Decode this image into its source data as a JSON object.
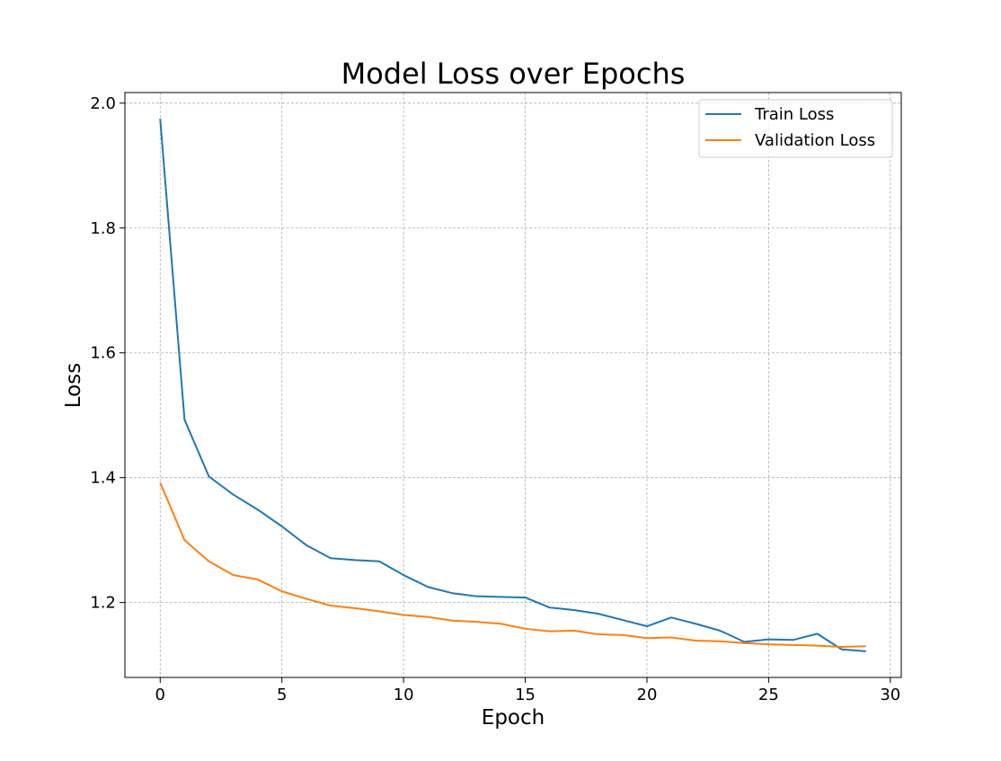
{
  "chart_data": {
    "type": "line",
    "title": "Model Loss over Epochs",
    "xlabel": "Epoch",
    "ylabel": "Loss",
    "xlim": [
      -1.45,
      30.45
    ],
    "ylim": [
      1.08,
      2.017
    ],
    "xticks": [
      0,
      5,
      10,
      15,
      20,
      25,
      30
    ],
    "yticks": [
      1.2,
      1.4,
      1.6,
      1.8,
      2.0
    ],
    "xtick_labels": [
      "0",
      "5",
      "10",
      "15",
      "20",
      "25",
      "30"
    ],
    "ytick_labels": [
      "1.2",
      "1.4",
      "1.6",
      "1.8",
      "2.0"
    ],
    "grid": true,
    "legend_position": "top-right",
    "x": [
      0,
      1,
      2,
      3,
      4,
      5,
      6,
      7,
      8,
      9,
      10,
      11,
      12,
      13,
      14,
      15,
      16,
      17,
      18,
      19,
      20,
      21,
      22,
      23,
      24,
      25,
      26,
      27,
      28,
      29
    ],
    "series": [
      {
        "name": "Train Loss",
        "color": "#1f77b4",
        "values": [
          1.975,
          1.493,
          1.402,
          1.373,
          1.349,
          1.322,
          1.292,
          1.271,
          1.268,
          1.266,
          1.244,
          1.225,
          1.215,
          1.21,
          1.209,
          1.208,
          1.192,
          1.188,
          1.182,
          1.172,
          1.162,
          1.176,
          1.166,
          1.155,
          1.137,
          1.141,
          1.14,
          1.15,
          1.125,
          1.122
        ]
      },
      {
        "name": "Validation Loss",
        "color": "#ff7f0e",
        "values": [
          1.392,
          1.3,
          1.266,
          1.244,
          1.237,
          1.218,
          1.206,
          1.195,
          1.191,
          1.186,
          1.18,
          1.177,
          1.171,
          1.169,
          1.166,
          1.158,
          1.154,
          1.155,
          1.149,
          1.148,
          1.143,
          1.144,
          1.139,
          1.138,
          1.135,
          1.133,
          1.132,
          1.131,
          1.129,
          1.13
        ]
      }
    ]
  }
}
